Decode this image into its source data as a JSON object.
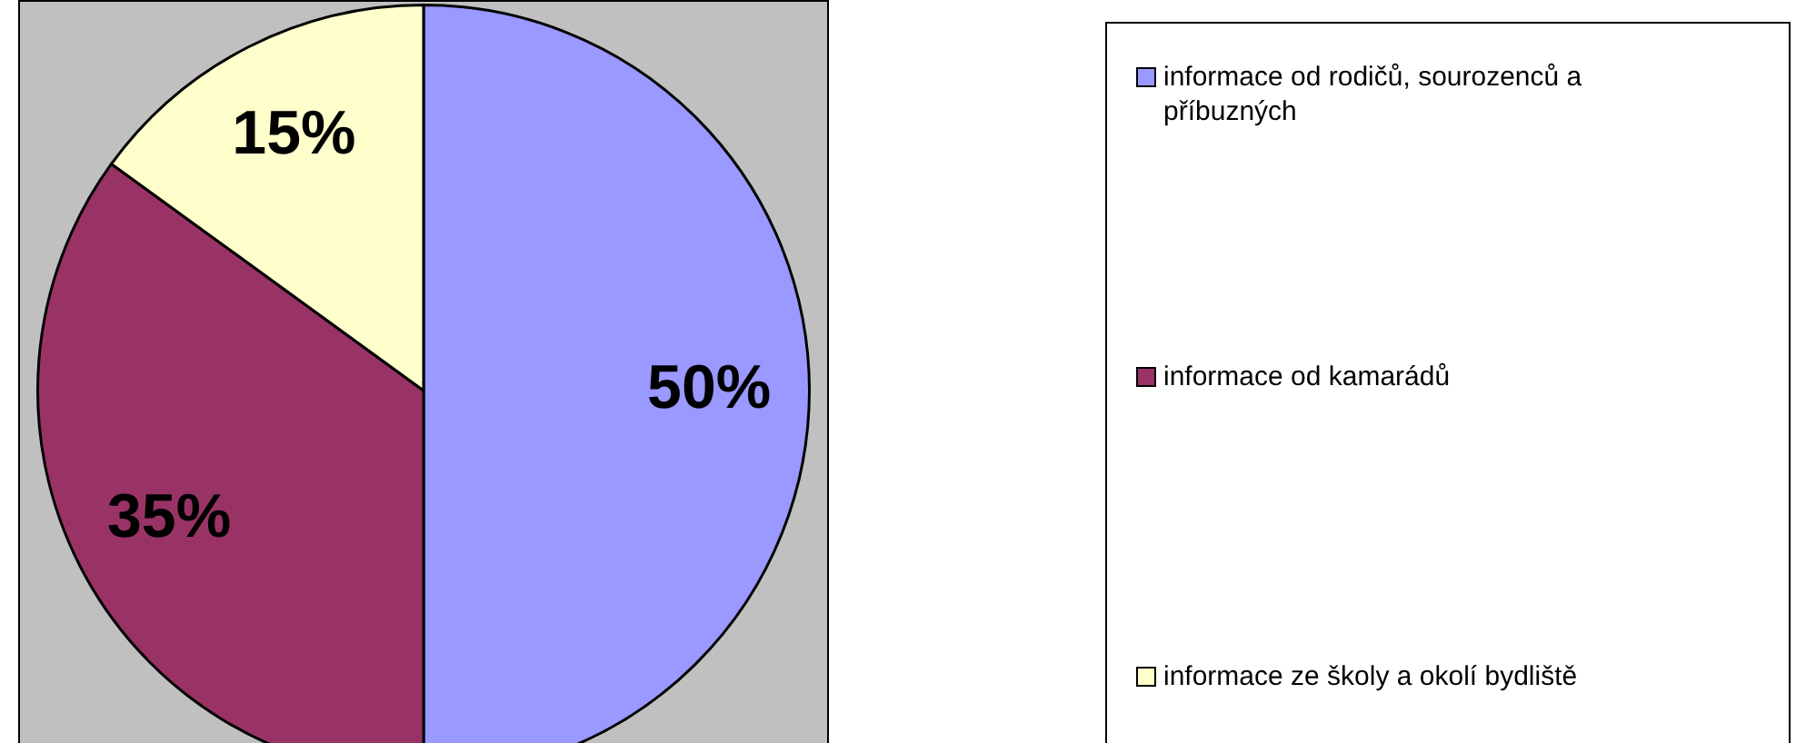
{
  "chart_data": {
    "type": "pie",
    "categories": [
      "informace od rodičů, sourozenců a příbuzných",
      "informace od kamarádů",
      "informace ze školy a okolí bydliště"
    ],
    "values": [
      50,
      35,
      15
    ],
    "colors": [
      "#9999ff",
      "#993366",
      "#ffffcc"
    ],
    "value_labels": [
      "50%",
      "35%",
      "15%"
    ],
    "legend": "right"
  }
}
